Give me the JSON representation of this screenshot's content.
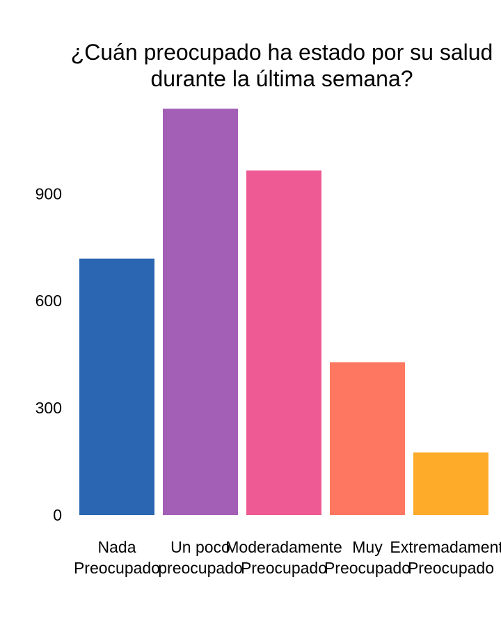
{
  "chart_data": {
    "type": "bar",
    "title_lines": [
      "¿Cuán preocupado ha estado por su salud",
      "durante la última semana?"
    ],
    "categories": [
      [
        "Nada",
        "Preocupado"
      ],
      [
        "Un poco",
        "preocupado"
      ],
      [
        "Moderadamente",
        "Preocupado"
      ],
      [
        "Muy",
        "Preocupado"
      ],
      [
        "Extremadamente",
        "Preocupado"
      ]
    ],
    "values": [
      718,
      1138,
      965,
      428,
      175
    ],
    "colors": [
      "#2A66B1",
      "#A35FB5",
      "#EE5A93",
      "#FE7761",
      "#FDAB29"
    ],
    "yticks": [
      0,
      300,
      600,
      900
    ],
    "ylim": [
      0,
      1150
    ],
    "xlabel": "",
    "ylabel": "",
    "grid": false,
    "legend": "none"
  }
}
